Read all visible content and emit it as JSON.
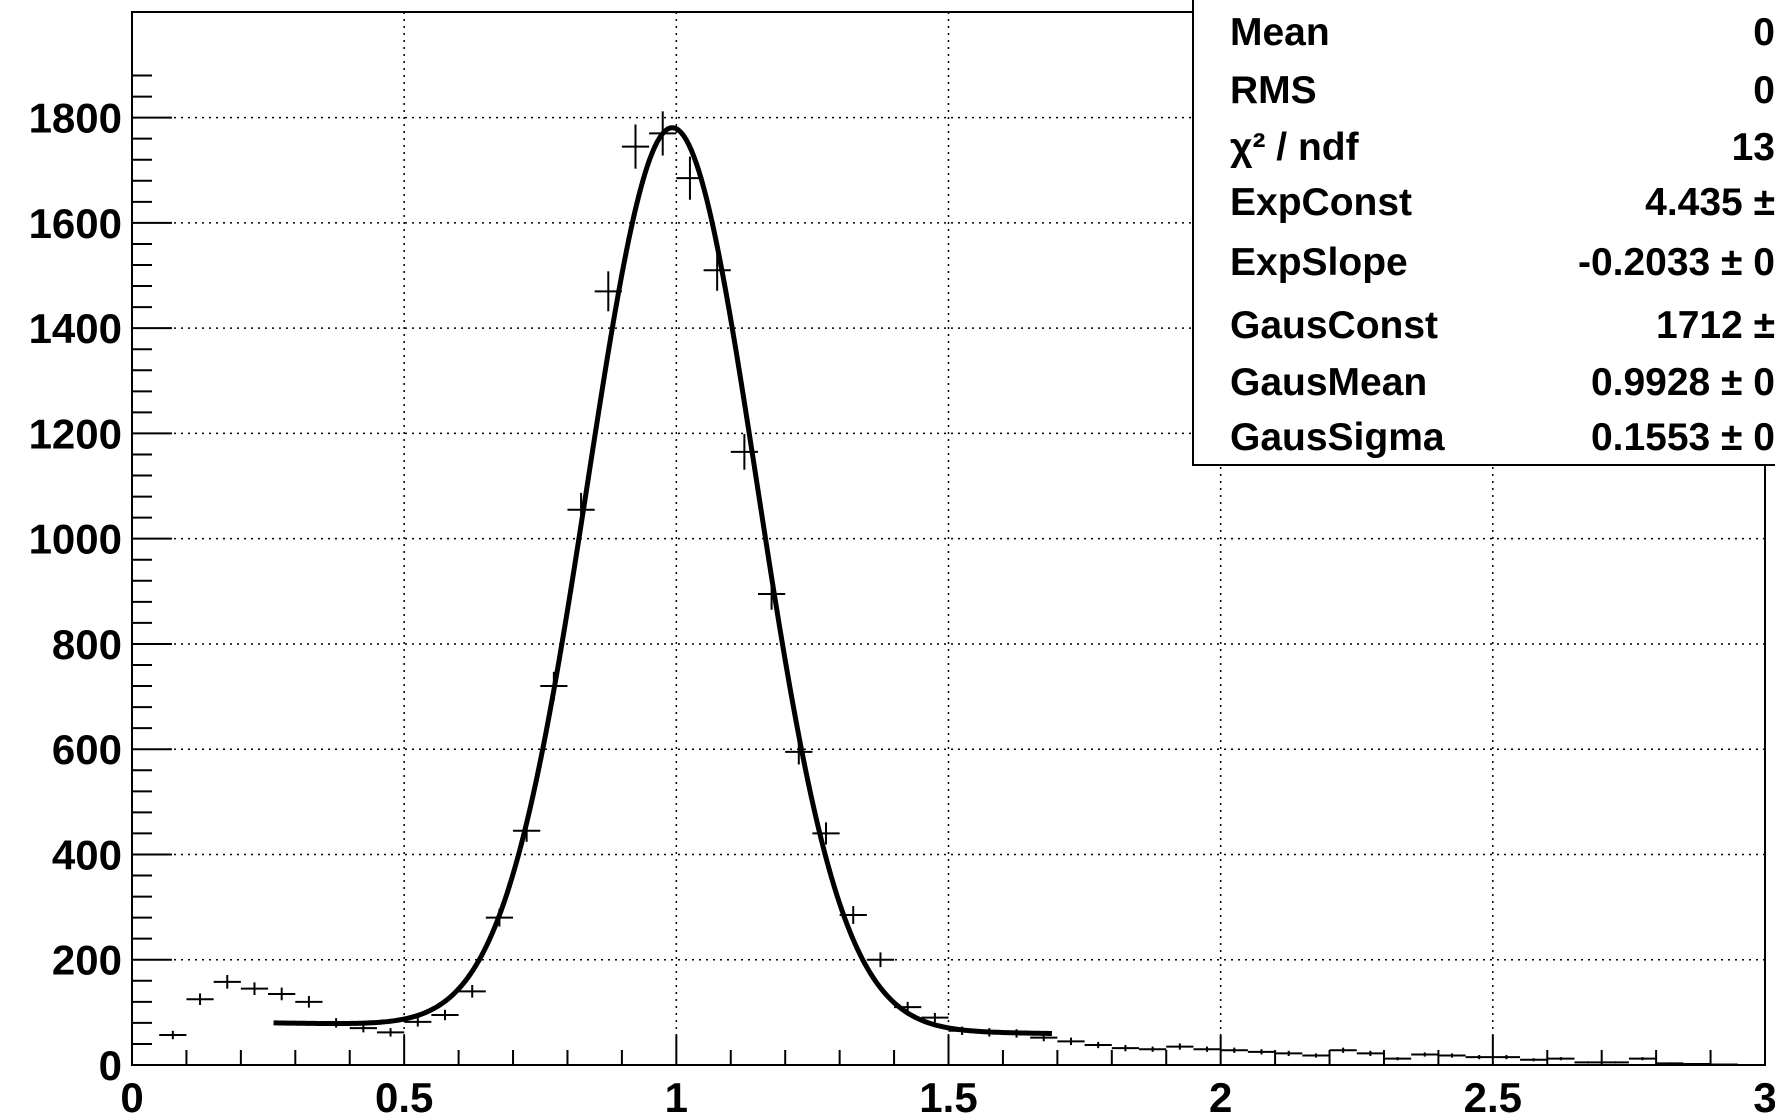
{
  "chart_data": {
    "type": "scatter",
    "title": "",
    "xlabel": "",
    "ylabel": "",
    "xlim": [
      0,
      3
    ],
    "ylim": [
      0,
      1900
    ],
    "grid": true,
    "x_ticks": [
      "0",
      "0.5",
      "1",
      "1.5",
      "2",
      "2.5",
      "3"
    ],
    "y_ticks": [
      "0",
      "200",
      "400",
      "600",
      "800",
      "1000",
      "1200",
      "1400",
      "1600",
      "1800"
    ],
    "x_tick_values": [
      0,
      0.5,
      1,
      1.5,
      2,
      2.5,
      3
    ],
    "y_tick_values": [
      0,
      200,
      400,
      600,
      800,
      1000,
      1200,
      1400,
      1600,
      1800
    ],
    "histogram_points": {
      "bin_width": 0.05,
      "x": [
        0.075,
        0.125,
        0.175,
        0.225,
        0.275,
        0.325,
        0.375,
        0.425,
        0.475,
        0.525,
        0.575,
        0.625,
        0.675,
        0.725,
        0.775,
        0.825,
        0.875,
        0.925,
        0.975,
        1.025,
        1.075,
        1.125,
        1.175,
        1.225,
        1.275,
        1.325,
        1.375,
        1.425,
        1.475,
        1.525,
        1.575,
        1.625,
        1.675,
        1.725,
        1.775,
        1.825,
        1.875,
        1.925,
        1.975,
        2.025,
        2.075,
        2.125,
        2.175,
        2.225,
        2.275,
        2.325,
        2.375,
        2.425,
        2.475,
        2.525,
        2.575,
        2.625,
        2.675,
        2.725,
        2.775,
        2.825,
        2.875,
        2.925,
        2.975
      ],
      "y": [
        57,
        125,
        158,
        145,
        135,
        120,
        80,
        70,
        62,
        82,
        95,
        140,
        280,
        445,
        720,
        1055,
        1470,
        1745,
        1770,
        1685,
        1510,
        1165,
        895,
        595,
        440,
        285,
        200,
        110,
        90,
        65,
        62,
        60,
        52,
        45,
        38,
        32,
        30,
        35,
        30,
        28,
        25,
        22,
        18,
        28,
        22,
        12,
        20,
        18,
        15,
        15,
        10,
        12,
        5,
        5,
        12,
        3,
        2,
        1,
        0
      ],
      "errors": [
        8,
        11,
        13,
        12,
        12,
        11,
        9,
        8,
        8,
        9,
        10,
        12,
        17,
        21,
        27,
        32,
        38,
        42,
        42,
        41,
        39,
        34,
        30,
        24,
        21,
        17,
        14,
        10,
        9,
        8,
        8,
        8,
        7,
        7,
        6,
        6,
        5,
        6,
        5,
        5,
        5,
        5,
        4,
        5,
        5,
        3,
        4,
        4,
        4,
        4,
        3,
        3,
        2,
        2,
        3,
        2,
        1,
        1,
        0
      ]
    },
    "fit_curve": {
      "x_range": [
        0.26,
        1.69
      ],
      "exp_const": 4.435,
      "exp_slope": -0.2033,
      "gaus_const": 1712,
      "gaus_mean": 0.9928,
      "gaus_sigma": 0.1553
    }
  },
  "stats_box": {
    "rows": [
      {
        "label": "Mean",
        "value": "0"
      },
      {
        "label": "RMS",
        "value": "0"
      },
      {
        "label": "χ² / ndf",
        "value": "13"
      },
      {
        "label": "ExpConst",
        "value": "4.435 ±"
      },
      {
        "label": "ExpSlope",
        "value": "-0.2033 ± 0"
      },
      {
        "label": "GausConst",
        "value": "1712 ±"
      },
      {
        "label": "GausMean",
        "value": "0.9928 ± 0"
      },
      {
        "label": "GausSigma",
        "value": "0.1553 ± 0"
      }
    ]
  }
}
